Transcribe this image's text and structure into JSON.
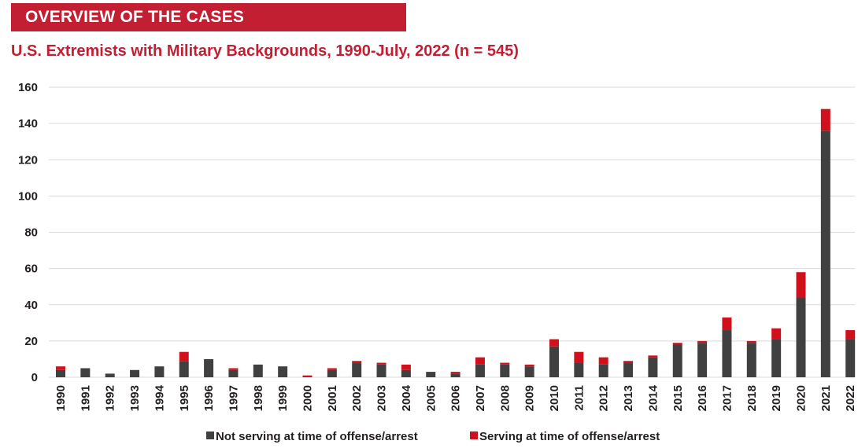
{
  "header": {
    "banner": "OVERVIEW OF THE CASES",
    "title": "U.S. Extremists with Military Backgrounds, 1990-July, 2022 (n = 545)"
  },
  "colors": {
    "brand_red": "#c21f32",
    "not_serving": "#404040",
    "serving": "#d0111b",
    "grid": "#d9d9d9",
    "text": "#231f20"
  },
  "chart_data": {
    "type": "bar",
    "stacked": true,
    "title": "U.S. Extremists with Military Backgrounds, 1990-July, 2022 (n = 545)",
    "xlabel": "",
    "ylabel": "",
    "ylim": [
      0,
      160
    ],
    "yticks": [
      0,
      20,
      40,
      60,
      80,
      100,
      120,
      140,
      160
    ],
    "grid": true,
    "legend_position": "bottom",
    "categories": [
      "1990",
      "1991",
      "1992",
      "1993",
      "1994",
      "1995",
      "1996",
      "1997",
      "1998",
      "1999",
      "2000",
      "2001",
      "2002",
      "2003",
      "2004",
      "2005",
      "2006",
      "2007",
      "2008",
      "2009",
      "2010",
      "2011",
      "2012",
      "2013",
      "2014",
      "2015",
      "2016",
      "2017",
      "2018",
      "2019",
      "2020",
      "2021",
      "2022"
    ],
    "series": [
      {
        "name": "Not serving at time of offense/arrest",
        "color": "#404040",
        "values": [
          4,
          5,
          2,
          4,
          6,
          9,
          10,
          4,
          7,
          6,
          0,
          4,
          8,
          7,
          4,
          3,
          2,
          7,
          7,
          6,
          17,
          8,
          7,
          8,
          11,
          18,
          19,
          26,
          19,
          21,
          44,
          136,
          21
        ]
      },
      {
        "name": "Serving at time of offense/arrest",
        "color": "#d0111b",
        "values": [
          2,
          0,
          0,
          0,
          0,
          5,
          0,
          1,
          0,
          0,
          1,
          1,
          1,
          1,
          3,
          0,
          1,
          4,
          1,
          1,
          4,
          6,
          4,
          1,
          1,
          1,
          1,
          7,
          1,
          6,
          14,
          12,
          5
        ]
      }
    ]
  }
}
